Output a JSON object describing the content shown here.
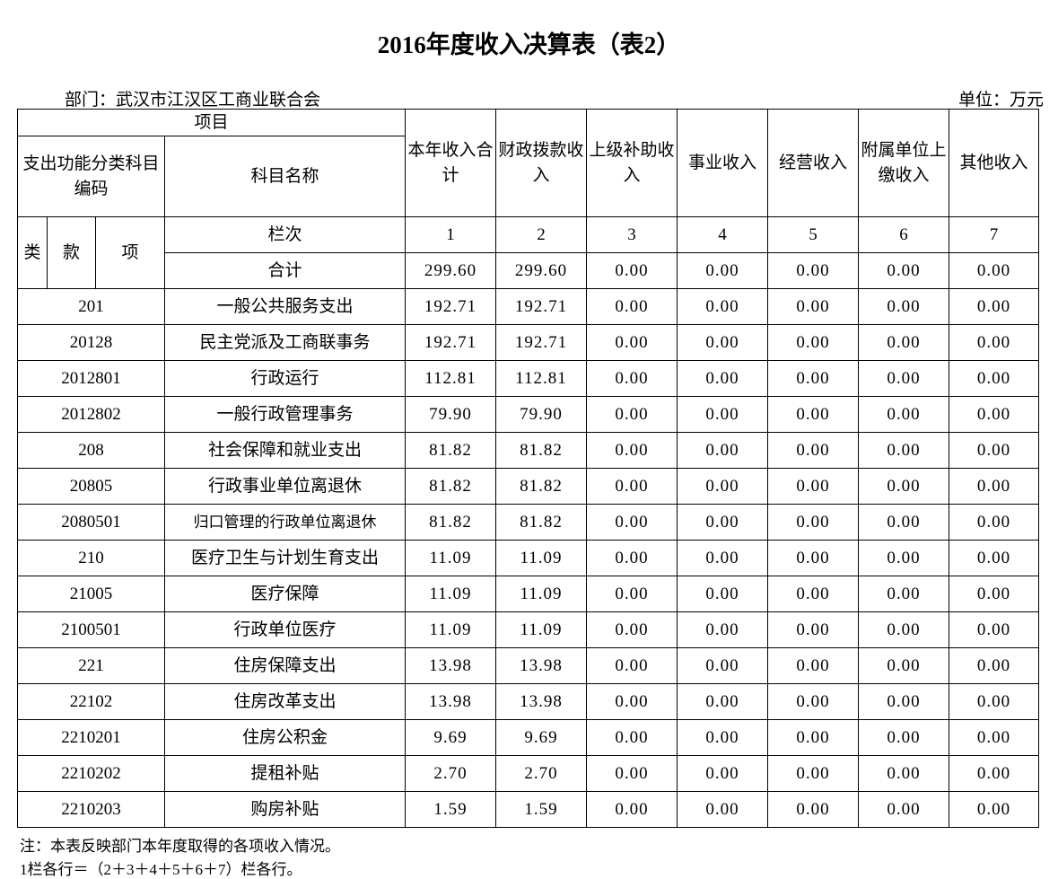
{
  "title": "2016年度收入决算表（表2）",
  "department": "部门：武汉市江汉区工商业联合会",
  "unit": "单位：万元",
  "header": {
    "project": "项目",
    "code_group": "支出功能分类科目编码",
    "subject_name": "科目名称",
    "lei": "类",
    "kuan": "款",
    "xiang": "项",
    "column_index_label": "栏次",
    "total_label": "合计",
    "columns": [
      "本年收入合计",
      "财政拨款收入",
      "上级补助收入",
      "事业收入",
      "经营收入",
      "附属单位上缴收入",
      "其他收入"
    ],
    "column_numbers": [
      "1",
      "2",
      "3",
      "4",
      "5",
      "6",
      "7"
    ]
  },
  "total_row": [
    "299.60",
    "299.60",
    "0.00",
    "0.00",
    "0.00",
    "0.00",
    "0.00"
  ],
  "rows": [
    {
      "code": "201",
      "name": "一般公共服务支出",
      "values": [
        "192.71",
        "192.71",
        "0.00",
        "0.00",
        "0.00",
        "0.00",
        "0.00"
      ]
    },
    {
      "code": "20128",
      "name": "民主党派及工商联事务",
      "values": [
        "192.71",
        "192.71",
        "0.00",
        "0.00",
        "0.00",
        "0.00",
        "0.00"
      ]
    },
    {
      "code": "2012801",
      "name": "行政运行",
      "values": [
        "112.81",
        "112.81",
        "0.00",
        "0.00",
        "0.00",
        "0.00",
        "0.00"
      ]
    },
    {
      "code": "2012802",
      "name": "一般行政管理事务",
      "values": [
        "79.90",
        "79.90",
        "0.00",
        "0.00",
        "0.00",
        "0.00",
        "0.00"
      ]
    },
    {
      "code": "208",
      "name": "社会保障和就业支出",
      "values": [
        "81.82",
        "81.82",
        "0.00",
        "0.00",
        "0.00",
        "0.00",
        "0.00"
      ]
    },
    {
      "code": "20805",
      "name": "行政事业单位离退休",
      "values": [
        "81.82",
        "81.82",
        "0.00",
        "0.00",
        "0.00",
        "0.00",
        "0.00"
      ]
    },
    {
      "code": "2080501",
      "name": "归口管理的行政单位离退休",
      "values": [
        "81.82",
        "81.82",
        "0.00",
        "0.00",
        "0.00",
        "0.00",
        "0.00"
      ]
    },
    {
      "code": "210",
      "name": "医疗卫生与计划生育支出",
      "values": [
        "11.09",
        "11.09",
        "0.00",
        "0.00",
        "0.00",
        "0.00",
        "0.00"
      ]
    },
    {
      "code": "21005",
      "name": "医疗保障",
      "values": [
        "11.09",
        "11.09",
        "0.00",
        "0.00",
        "0.00",
        "0.00",
        "0.00"
      ]
    },
    {
      "code": "2100501",
      "name": "行政单位医疗",
      "values": [
        "11.09",
        "11.09",
        "0.00",
        "0.00",
        "0.00",
        "0.00",
        "0.00"
      ]
    },
    {
      "code": "221",
      "name": "住房保障支出",
      "values": [
        "13.98",
        "13.98",
        "0.00",
        "0.00",
        "0.00",
        "0.00",
        "0.00"
      ]
    },
    {
      "code": "22102",
      "name": "住房改革支出",
      "values": [
        "13.98",
        "13.98",
        "0.00",
        "0.00",
        "0.00",
        "0.00",
        "0.00"
      ]
    },
    {
      "code": "2210201",
      "name": "住房公积金",
      "values": [
        "9.69",
        "9.69",
        "0.00",
        "0.00",
        "0.00",
        "0.00",
        "0.00"
      ]
    },
    {
      "code": "2210202",
      "name": "提租补贴",
      "values": [
        "2.70",
        "2.70",
        "0.00",
        "0.00",
        "0.00",
        "0.00",
        "0.00"
      ]
    },
    {
      "code": "2210203",
      "name": "购房补贴",
      "values": [
        "1.59",
        "1.59",
        "0.00",
        "0.00",
        "0.00",
        "0.00",
        "0.00"
      ]
    }
  ],
  "notes": [
    "注：本表反映部门本年度取得的各项收入情况。",
    "1栏各行＝（2＋3＋4＋5＋6＋7）栏各行。"
  ]
}
